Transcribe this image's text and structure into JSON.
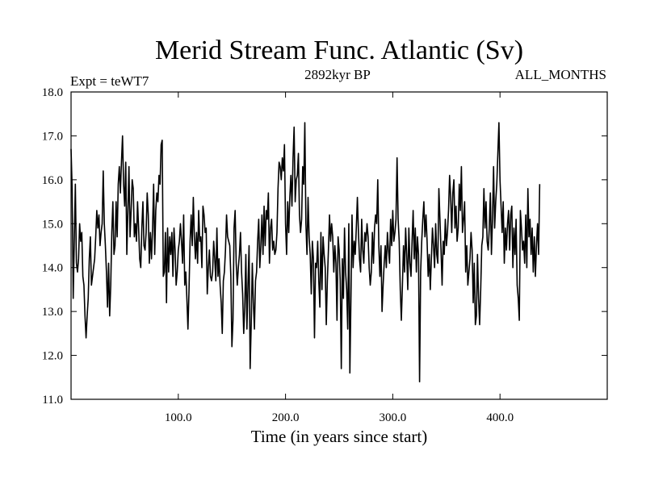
{
  "chart_data": {
    "type": "line",
    "title": "Merid Stream Func. Atlantic (Sv)",
    "subtitle_left": "Expt = teWT7",
    "subtitle_center": "2892kyr BP",
    "subtitle_right": "ALL_MONTHS",
    "xlabel": "Time (in years since start)",
    "ylabel": "",
    "xlim": [
      0,
      500
    ],
    "ylim": [
      11.0,
      18.0
    ],
    "x_ticks": [
      100,
      200,
      300,
      400
    ],
    "x_tick_labels": [
      "100.0",
      "200.0",
      "300.0",
      "400.0"
    ],
    "y_ticks": [
      11,
      12,
      13,
      14,
      15,
      16,
      17,
      18
    ],
    "y_tick_labels": [
      "11.0",
      "12.0",
      "13.0",
      "14.0",
      "15.0",
      "16.0",
      "17.0",
      "18.0"
    ],
    "grid": false,
    "series": [
      {
        "name": "Merid Stream Func. Atlantic",
        "x_start": 0,
        "x_step": 1,
        "values": [
          16.7,
          15.8,
          13.3,
          14.6,
          15.9,
          14.1,
          13.9,
          14.2,
          15.0,
          14.6,
          14.8,
          13.8,
          13.6,
          12.9,
          12.4,
          12.9,
          13.3,
          14.2,
          14.7,
          13.6,
          13.8,
          14.0,
          14.2,
          14.7,
          15.3,
          14.9,
          15.2,
          14.5,
          14.8,
          15.0,
          16.2,
          15.0,
          14.5,
          13.9,
          13.1,
          14.1,
          12.9,
          13.6,
          14.8,
          15.5,
          14.3,
          14.5,
          15.5,
          14.7,
          15.9,
          16.3,
          15.7,
          16.4,
          17.0,
          15.9,
          15.4,
          16.4,
          14.3,
          15.3,
          16.3,
          14.7,
          15.3,
          16.0,
          15.8,
          14.7,
          15.0,
          14.6,
          15.5,
          14.9,
          14.2,
          14.0,
          14.9,
          15.5,
          14.5,
          14.4,
          14.8,
          15.7,
          15.2,
          14.1,
          14.8,
          14.2,
          14.9,
          15.9,
          14.3,
          15.3,
          15.7,
          15.5,
          16.1,
          15.9,
          16.8,
          16.9,
          13.8,
          13.9,
          14.8,
          13.2,
          14.9,
          13.9,
          14.7,
          14.3,
          14.8,
          13.8,
          14.9,
          14.4,
          13.6,
          13.9,
          14.4,
          14.6,
          15.0,
          14.6,
          14.1,
          15.2,
          13.6,
          13.9,
          13.3,
          12.6,
          13.5,
          14.6,
          15.2,
          14.5,
          15.6,
          14.7,
          14.2,
          14.8,
          14.1,
          15.3,
          14.6,
          14.7,
          14.0,
          15.4,
          15.2,
          14.8,
          14.9,
          13.4,
          14.0,
          14.4,
          13.8,
          13.7,
          13.9,
          14.6,
          14.2,
          13.7,
          14.9,
          13.8,
          14.2,
          13.6,
          13.2,
          12.5,
          13.7,
          13.9,
          14.4,
          15.2,
          14.7,
          14.6,
          14.5,
          13.8,
          12.2,
          12.8,
          14.9,
          15.3,
          14.1,
          13.6,
          14.0,
          14.3,
          14.8,
          13.9,
          13.4,
          12.5,
          13.1,
          14.3,
          12.6,
          13.6,
          14.5,
          11.7,
          12.7,
          14.1,
          13.2,
          12.6,
          13.7,
          13.9,
          14.6,
          15.1,
          14.0,
          14.5,
          15.2,
          14.3,
          15.4,
          14.5,
          15.3,
          15.1,
          15.7,
          14.1,
          14.9,
          15.1,
          14.4,
          14.6,
          14.3,
          14.4,
          14.8,
          15.8,
          16.4,
          16.3,
          16.0,
          16.5,
          16.2,
          16.8,
          15.0,
          14.3,
          15.5,
          14.8,
          15.6,
          16.1,
          15.4,
          16.5,
          17.2,
          15.5,
          16.0,
          16.1,
          16.6,
          15.2,
          14.8,
          15.1,
          16.3,
          15.9,
          17.3,
          15.0,
          14.3,
          15.6,
          14.7,
          14.3,
          13.4,
          14.6,
          14.2,
          12.4,
          14.1,
          14.0,
          14.6,
          13.7,
          13.1,
          14.8,
          13.5,
          14.7,
          14.3,
          14.0,
          12.7,
          13.7,
          14.4,
          15.2,
          14.6,
          15.0,
          14.7,
          13.9,
          14.5,
          14.1,
          12.8,
          14.7,
          14.4,
          13.7,
          11.7,
          14.2,
          13.3,
          14.9,
          13.9,
          13.5,
          12.6,
          15.0,
          11.6,
          13.3,
          15.2,
          14.0,
          14.6,
          14.3,
          14.9,
          15.6,
          14.8,
          14.2,
          13.9,
          15.1,
          14.4,
          14.1,
          14.8,
          14.6,
          15.0,
          14.7,
          14.0,
          13.6,
          13.9,
          14.8,
          14.1,
          14.9,
          15.2,
          15.0,
          16.0,
          14.5,
          13.8,
          14.5,
          13.0,
          13.6,
          14.1,
          14.5,
          14.0,
          14.8,
          14.4,
          14.1,
          15.1,
          14.5,
          15.3,
          14.6,
          14.8,
          15.1,
          16.5,
          15.1,
          14.6,
          13.5,
          12.8,
          13.6,
          14.5,
          13.9,
          14.9,
          14.3,
          13.5,
          14.9,
          14.1,
          13.8,
          14.6,
          15.3,
          14.2,
          14.9,
          13.9,
          14.7,
          14.3,
          11.4,
          13.9,
          14.6,
          15.1,
          15.5,
          14.7,
          15.2,
          14.6,
          13.8,
          14.3,
          13.5,
          14.2,
          14.9,
          14.5,
          14.0,
          15.0,
          14.3,
          14.1,
          15.8,
          15.1,
          14.4,
          13.6,
          14.6,
          14.3,
          15.1,
          14.5,
          14.8,
          15.3,
          16.1,
          15.6,
          14.8,
          15.7,
          16.0,
          14.9,
          15.4,
          14.6,
          14.9,
          15.9,
          15.3,
          16.3,
          14.8,
          15.1,
          15.5,
          13.9,
          14.5,
          13.6,
          13.9,
          14.2,
          14.8,
          14.4,
          13.2,
          14.1,
          12.7,
          12.9,
          14.3,
          13.3,
          12.7,
          13.5,
          14.5,
          14.7,
          15.8,
          14.9,
          15.5,
          14.6,
          14.4,
          14.9,
          15.7,
          14.3,
          15.1,
          16.3,
          14.9,
          15.5,
          15.9,
          16.6,
          17.3,
          16.0,
          15.4,
          14.8,
          15.5,
          14.1,
          14.9,
          14.4,
          15.0,
          15.3,
          14.4,
          15.2,
          15.4,
          14.0,
          14.9,
          14.3,
          15.1,
          13.6,
          13.3,
          12.8,
          15.3,
          14.9,
          14.4,
          14.6,
          14.1,
          15.2,
          14.0,
          15.8,
          14.7,
          15.1,
          14.3,
          14.9,
          13.9,
          14.7,
          13.8,
          14.5,
          15.0,
          14.3,
          15.9
        ]
      }
    ]
  }
}
